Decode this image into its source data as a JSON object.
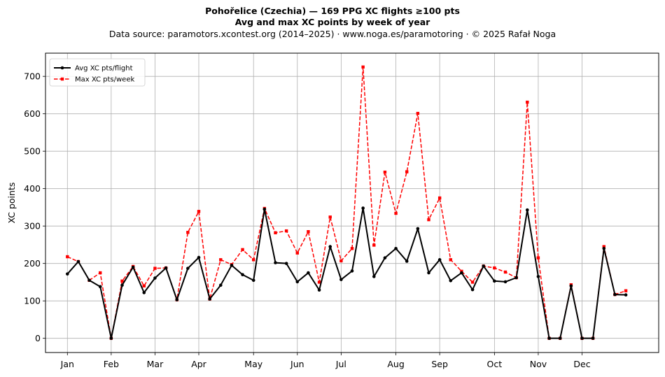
{
  "header": {
    "title_line1": "Pohořelice (Czechia)  —  169 PPG XC flights ≥100 pts",
    "title_line2": "Avg and max XC points by week of year",
    "source_line": "Data source: paramotors.xcontest.org (2014–2025)  ·  www.noga.es/paramotoring  ·  © 2025 Rafał Noga"
  },
  "chart_data": {
    "type": "line",
    "title": "Pohořelice (Czechia)  —  169 PPG XC flights ≥100 pts",
    "subtitle": "Avg and max XC points by week of year",
    "xlabel": "",
    "ylabel": "XC points",
    "xlim": [
      -1,
      55
    ],
    "ylim": [
      -38,
      762
    ],
    "grid": true,
    "legend_position": "top-left",
    "x_ticks": [
      {
        "label": "Jan",
        "week": 1
      },
      {
        "label": "Feb",
        "week": 5
      },
      {
        "label": "Mar",
        "week": 9
      },
      {
        "label": "Apr",
        "week": 13
      },
      {
        "label": "May",
        "week": 18
      },
      {
        "label": "Jun",
        "week": 22
      },
      {
        "label": "Jul",
        "week": 26
      },
      {
        "label": "Aug",
        "week": 31
      },
      {
        "label": "Sep",
        "week": 35
      },
      {
        "label": "Oct",
        "week": 40
      },
      {
        "label": "Nov",
        "week": 44
      },
      {
        "label": "Dec",
        "week": 48
      }
    ],
    "y_ticks": [
      0,
      100,
      200,
      300,
      400,
      500,
      600,
      700
    ],
    "series": [
      {
        "name": "Avg XC pts/flight",
        "color": "#000000",
        "style": "solid",
        "marker": "circle",
        "points": [
          [
            1,
            172
          ],
          [
            2,
            205
          ],
          [
            3,
            155
          ],
          [
            4,
            138
          ],
          [
            5,
            0
          ],
          [
            6,
            142
          ],
          [
            7,
            190
          ],
          [
            8,
            122
          ],
          [
            9,
            161
          ],
          [
            10,
            188
          ],
          [
            11,
            103
          ],
          [
            12,
            187
          ],
          [
            13,
            216
          ],
          [
            14,
            105
          ],
          [
            15,
            142
          ],
          [
            16,
            195
          ],
          [
            17,
            170
          ],
          [
            18,
            155
          ],
          [
            19,
            345
          ],
          [
            20,
            202
          ],
          [
            21,
            200
          ],
          [
            22,
            151
          ],
          [
            23,
            175
          ],
          [
            24,
            129
          ],
          [
            25,
            245
          ],
          [
            26,
            157
          ],
          [
            27,
            180
          ],
          [
            28,
            348
          ],
          [
            29,
            165
          ],
          [
            30,
            215
          ],
          [
            31,
            240
          ],
          [
            32,
            206
          ],
          [
            33,
            293
          ],
          [
            34,
            175
          ],
          [
            35,
            210
          ],
          [
            36,
            154
          ],
          [
            37,
            175
          ],
          [
            38,
            130
          ],
          [
            39,
            193
          ],
          [
            40,
            153
          ],
          [
            41,
            151
          ],
          [
            42,
            162
          ],
          [
            43,
            343
          ],
          [
            44,
            165
          ],
          [
            45,
            0
          ],
          [
            46,
            0
          ],
          [
            47,
            140
          ],
          [
            48,
            0
          ],
          [
            49,
            0
          ],
          [
            50,
            240
          ],
          [
            51,
            117
          ],
          [
            52,
            116
          ]
        ]
      },
      {
        "name": "Max XC pts/week",
        "color": "#ff0000",
        "style": "dashed",
        "marker": "square",
        "points": [
          [
            1,
            218
          ],
          [
            2,
            205
          ],
          [
            3,
            155
          ],
          [
            4,
            175
          ],
          [
            5,
            0
          ],
          [
            6,
            153
          ],
          [
            7,
            192
          ],
          [
            8,
            140
          ],
          [
            9,
            187
          ],
          [
            10,
            188
          ],
          [
            11,
            103
          ],
          [
            12,
            283
          ],
          [
            13,
            339
          ],
          [
            14,
            105
          ],
          [
            15,
            210
          ],
          [
            16,
            197
          ],
          [
            17,
            237
          ],
          [
            18,
            210
          ],
          [
            19,
            347
          ],
          [
            20,
            282
          ],
          [
            21,
            287
          ],
          [
            22,
            228
          ],
          [
            23,
            285
          ],
          [
            24,
            150
          ],
          [
            25,
            324
          ],
          [
            26,
            207
          ],
          [
            27,
            240
          ],
          [
            28,
            725
          ],
          [
            29,
            249
          ],
          [
            30,
            444
          ],
          [
            31,
            334
          ],
          [
            32,
            445
          ],
          [
            33,
            601
          ],
          [
            34,
            317
          ],
          [
            35,
            375
          ],
          [
            36,
            210
          ],
          [
            37,
            179
          ],
          [
            38,
            150
          ],
          [
            39,
            193
          ],
          [
            40,
            188
          ],
          [
            41,
            177
          ],
          [
            42,
            162
          ],
          [
            43,
            631
          ],
          [
            44,
            215
          ],
          [
            45,
            0
          ],
          [
            46,
            0
          ],
          [
            47,
            143
          ],
          [
            48,
            0
          ],
          [
            49,
            0
          ],
          [
            50,
            245
          ],
          [
            51,
            117
          ],
          [
            52,
            127
          ]
        ]
      }
    ]
  }
}
